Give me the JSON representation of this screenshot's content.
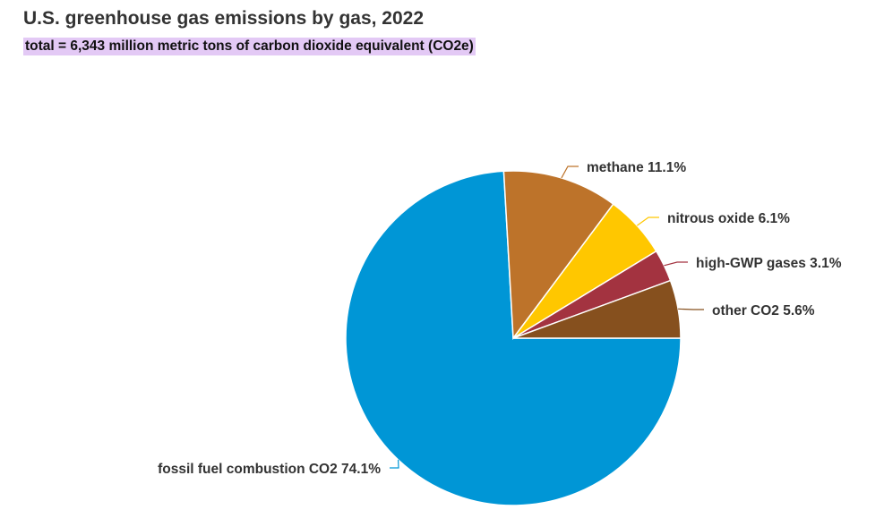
{
  "chart_data": {
    "type": "pie",
    "title": "U.S. greenhouse gas emissions by gas, 2022",
    "subtitle": "total = 6,343 million metric tons of carbon dioxide equivalent (CO2e)",
    "slices": [
      {
        "name": "fossil fuel combustion CO2",
        "value": 74.1,
        "label": "fossil fuel combustion CO2 74.1%",
        "color": "#0096d6"
      },
      {
        "name": "methane",
        "value": 11.1,
        "label": "methane 11.1%",
        "color": "#bd732a"
      },
      {
        "name": "nitrous oxide",
        "value": 6.1,
        "label": "nitrous oxide 6.1%",
        "color": "#ffc700"
      },
      {
        "name": "high-GWP gases",
        "value": 3.1,
        "label": "high-GWP gases 3.1%",
        "color": "#a33340"
      },
      {
        "name": "other CO2",
        "value": 5.6,
        "label": "other CO2 5.6%",
        "color": "#86501e"
      }
    ],
    "start_angle": "3 o'clock",
    "direction": "clockwise"
  }
}
